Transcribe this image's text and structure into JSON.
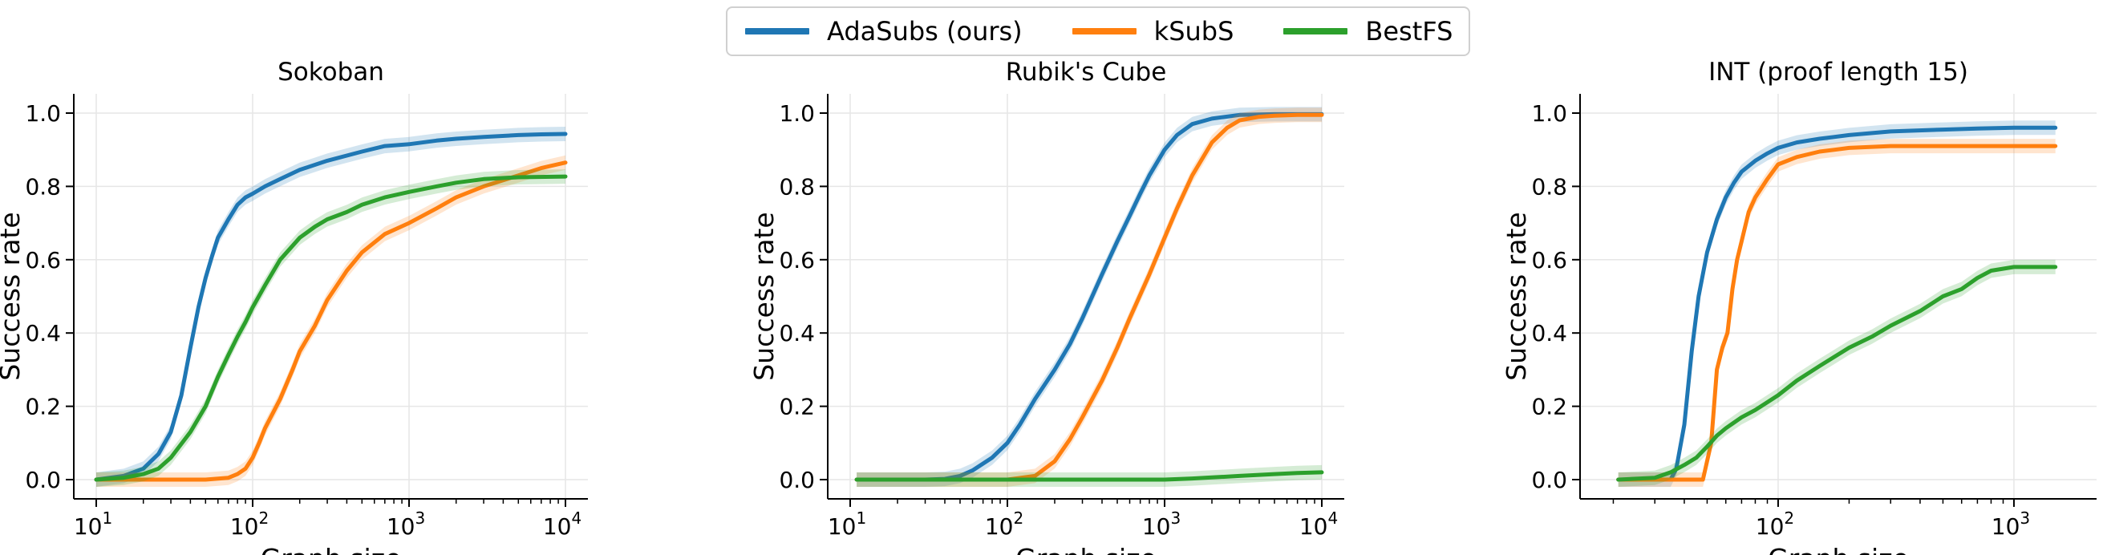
{
  "legend": {
    "items": [
      {
        "label": "AdaSubs (ours)",
        "color": "#1f77b4"
      },
      {
        "label": "kSubS",
        "color": "#ff7f0e"
      },
      {
        "label": "BestFS",
        "color": "#2ca02c"
      }
    ]
  },
  "chart_data": [
    {
      "type": "line",
      "title": "Sokoban",
      "xlabel": "Graph size",
      "ylabel": "Success rate",
      "xscale": "log",
      "xlim": [
        10,
        10000
      ],
      "ylim": [
        0,
        1
      ],
      "xticks": [
        10,
        100,
        1000,
        10000
      ],
      "xtick_labels": [
        [
          "10",
          "1"
        ],
        [
          "10",
          "2"
        ],
        [
          "10",
          "3"
        ],
        [
          "10",
          "4"
        ]
      ],
      "yticks": [
        0.0,
        0.2,
        0.4,
        0.6,
        0.8,
        1.0
      ],
      "ytick_labels": [
        "0.0",
        "0.2",
        "0.4",
        "0.6",
        "0.8",
        "1.0"
      ],
      "grid": true,
      "series": [
        {
          "name": "AdaSubs (ours)",
          "color": "#1f77b4",
          "x": [
            10,
            15,
            20,
            25,
            30,
            35,
            40,
            45,
            50,
            55,
            60,
            70,
            80,
            90,
            100,
            120,
            150,
            200,
            300,
            500,
            700,
            1000,
            1500,
            2000,
            3000,
            5000,
            7000,
            10000
          ],
          "y": [
            0.0,
            0.01,
            0.03,
            0.07,
            0.13,
            0.23,
            0.36,
            0.47,
            0.55,
            0.61,
            0.66,
            0.71,
            0.75,
            0.77,
            0.78,
            0.8,
            0.82,
            0.845,
            0.87,
            0.895,
            0.91,
            0.915,
            0.925,
            0.93,
            0.935,
            0.94,
            0.942,
            0.943
          ]
        },
        {
          "name": "kSubS",
          "color": "#ff7f0e",
          "x": [
            10,
            20,
            30,
            50,
            70,
            80,
            90,
            100,
            110,
            120,
            150,
            180,
            200,
            250,
            300,
            400,
            500,
            700,
            1000,
            1500,
            2000,
            3000,
            5000,
            7000,
            10000
          ],
          "y": [
            0.0,
            0.0,
            0.0,
            0.0,
            0.005,
            0.015,
            0.03,
            0.06,
            0.1,
            0.14,
            0.22,
            0.3,
            0.35,
            0.42,
            0.49,
            0.57,
            0.62,
            0.67,
            0.7,
            0.74,
            0.77,
            0.8,
            0.83,
            0.85,
            0.865
          ]
        },
        {
          "name": "BestFS",
          "color": "#2ca02c",
          "x": [
            10,
            15,
            20,
            25,
            30,
            40,
            50,
            60,
            70,
            80,
            90,
            100,
            120,
            150,
            200,
            250,
            300,
            400,
            500,
            700,
            1000,
            1500,
            2000,
            3000,
            5000,
            10000
          ],
          "y": [
            0.0,
            0.005,
            0.015,
            0.03,
            0.06,
            0.13,
            0.2,
            0.28,
            0.34,
            0.39,
            0.43,
            0.47,
            0.53,
            0.6,
            0.66,
            0.69,
            0.71,
            0.73,
            0.75,
            0.77,
            0.785,
            0.8,
            0.81,
            0.82,
            0.825,
            0.827
          ]
        }
      ]
    },
    {
      "type": "line",
      "title": "Rubik's Cube",
      "xlabel": "Graph size",
      "ylabel": "Success rate",
      "xscale": "log",
      "xlim": [
        10,
        10000
      ],
      "ylim": [
        0,
        1
      ],
      "xticks": [
        10,
        100,
        1000,
        10000
      ],
      "xtick_labels": [
        [
          "10",
          "1"
        ],
        [
          "10",
          "2"
        ],
        [
          "10",
          "3"
        ],
        [
          "10",
          "4"
        ]
      ],
      "yticks": [
        0.0,
        0.2,
        0.4,
        0.6,
        0.8,
        1.0
      ],
      "ytick_labels": [
        "0.0",
        "0.2",
        "0.4",
        "0.6",
        "0.8",
        "1.0"
      ],
      "grid": true,
      "series": [
        {
          "name": "AdaSubs (ours)",
          "color": "#1f77b4",
          "x": [
            11,
            30,
            40,
            50,
            60,
            80,
            100,
            120,
            150,
            200,
            250,
            300,
            400,
            500,
            600,
            700,
            800,
            1000,
            1200,
            1500,
            2000,
            3000,
            5000,
            10000
          ],
          "y": [
            0.0,
            0.0,
            0.002,
            0.01,
            0.025,
            0.06,
            0.1,
            0.15,
            0.22,
            0.3,
            0.37,
            0.44,
            0.56,
            0.65,
            0.72,
            0.78,
            0.83,
            0.9,
            0.94,
            0.97,
            0.985,
            0.995,
            0.997,
            0.997
          ]
        },
        {
          "name": "kSubS",
          "color": "#ff7f0e",
          "x": [
            11,
            100,
            150,
            200,
            250,
            300,
            400,
            500,
            600,
            800,
            1000,
            1200,
            1500,
            2000,
            2500,
            3000,
            4000,
            5000,
            7000,
            10000
          ],
          "y": [
            0.0,
            0.0,
            0.01,
            0.05,
            0.11,
            0.17,
            0.27,
            0.36,
            0.44,
            0.56,
            0.66,
            0.74,
            0.83,
            0.92,
            0.96,
            0.98,
            0.99,
            0.993,
            0.995,
            0.995
          ]
        },
        {
          "name": "BestFS",
          "color": "#2ca02c",
          "x": [
            11,
            1000,
            1500,
            2000,
            3000,
            5000,
            7000,
            10000
          ],
          "y": [
            0.0,
            0.0,
            0.003,
            0.006,
            0.01,
            0.015,
            0.018,
            0.02
          ]
        }
      ]
    },
    {
      "type": "line",
      "title": "INT (proof length 15)",
      "xlabel": "Graph size",
      "ylabel": "Success rate",
      "xscale": "log",
      "xlim": [
        18,
        1800
      ],
      "ylim": [
        0,
        1
      ],
      "xticks": [
        100,
        1000
      ],
      "xtick_labels": [
        [
          "10",
          "2"
        ],
        [
          "10",
          "3"
        ]
      ],
      "yticks": [
        0.0,
        0.2,
        0.4,
        0.6,
        0.8,
        1.0
      ],
      "ytick_labels": [
        "0.0",
        "0.2",
        "0.4",
        "0.6",
        "0.8",
        "1.0"
      ],
      "grid": true,
      "series": [
        {
          "name": "AdaSubs (ours)",
          "color": "#1f77b4",
          "x": [
            21,
            35,
            37,
            40,
            43,
            46,
            50,
            55,
            60,
            65,
            70,
            80,
            90,
            100,
            120,
            150,
            200,
            300,
            500,
            700,
            1000,
            1500
          ],
          "y": [
            0.0,
            0.0,
            0.03,
            0.15,
            0.35,
            0.5,
            0.62,
            0.71,
            0.77,
            0.81,
            0.84,
            0.87,
            0.89,
            0.905,
            0.92,
            0.93,
            0.94,
            0.95,
            0.955,
            0.958,
            0.96,
            0.96
          ]
        },
        {
          "name": "kSubS",
          "color": "#ff7f0e",
          "x": [
            21,
            48,
            52,
            55,
            58,
            61,
            64,
            67,
            70,
            75,
            80,
            90,
            100,
            120,
            150,
            200,
            300,
            500,
            1000,
            1500
          ],
          "y": [
            0.0,
            0.0,
            0.1,
            0.3,
            0.36,
            0.4,
            0.52,
            0.6,
            0.65,
            0.73,
            0.77,
            0.82,
            0.86,
            0.88,
            0.895,
            0.905,
            0.91,
            0.91,
            0.91,
            0.91
          ]
        },
        {
          "name": "BestFS",
          "color": "#2ca02c",
          "x": [
            21,
            30,
            35,
            40,
            45,
            50,
            55,
            60,
            70,
            80,
            100,
            120,
            150,
            200,
            250,
            300,
            400,
            500,
            600,
            700,
            800,
            1000,
            1500
          ],
          "y": [
            0.0,
            0.005,
            0.02,
            0.04,
            0.06,
            0.09,
            0.12,
            0.14,
            0.17,
            0.19,
            0.23,
            0.27,
            0.31,
            0.36,
            0.39,
            0.42,
            0.46,
            0.5,
            0.52,
            0.55,
            0.57,
            0.58,
            0.58
          ]
        }
      ]
    }
  ]
}
